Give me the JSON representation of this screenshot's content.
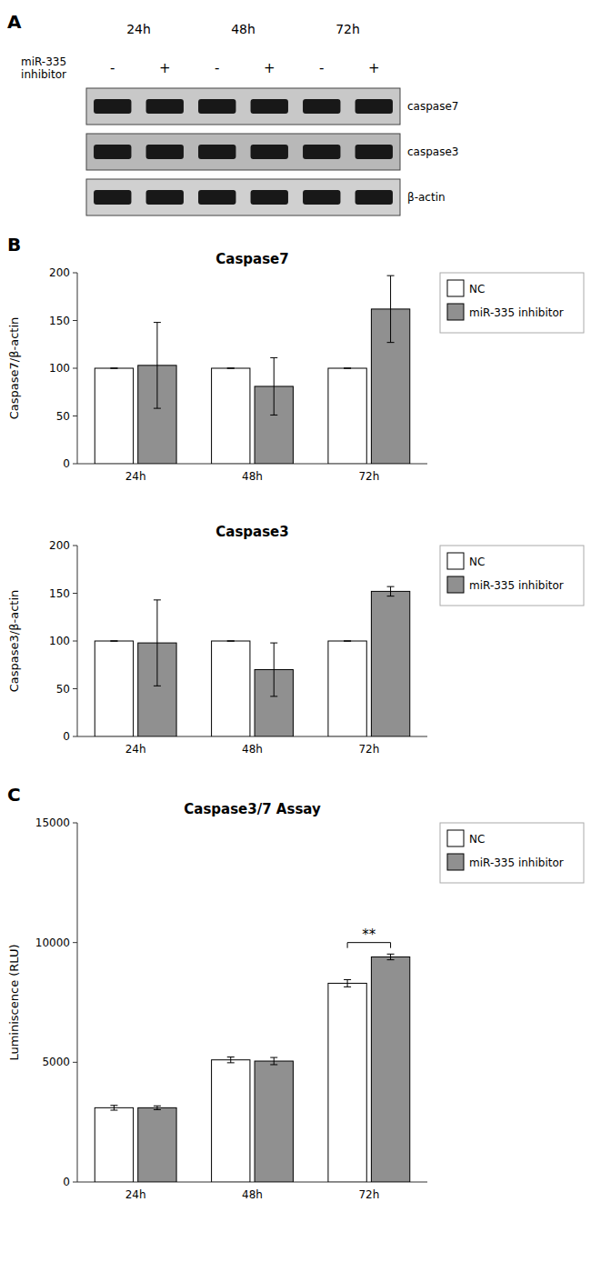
{
  "chart_data": [
    {
      "type": "blot",
      "annotations": [
        {
          "text": "A"
        }
      ],
      "ylabel": "miR-335\ninhibitor",
      "categories": [
        "24h",
        "48h",
        "72h"
      ],
      "lane_labels": [
        "-",
        "+",
        "-",
        "+",
        "-",
        "+"
      ],
      "row_labels": [
        "caspase7",
        "caspase3",
        "β-actin"
      ]
    },
    {
      "type": "bar",
      "title": "Caspase7",
      "ylabel": "Caspase7/β-actin",
      "annotations": [
        {
          "text": "B"
        }
      ],
      "categories": [
        "24h",
        "48h",
        "72h"
      ],
      "series": [
        {
          "name": "NC",
          "color": "#ffffff",
          "values": [
            100,
            100,
            100
          ],
          "errors": [
            0,
            0,
            0
          ]
        },
        {
          "name": "miR-335 inhibitor",
          "color": "#909090",
          "values": [
            103,
            81,
            162
          ],
          "errors": [
            45,
            30,
            35
          ]
        }
      ],
      "ylim": [
        0,
        200
      ],
      "yticks": [
        0,
        50,
        100,
        150,
        200
      ],
      "grid": false,
      "legend": "right"
    },
    {
      "type": "bar",
      "title": "Caspase3",
      "ylabel": "Caspase3/β-actin",
      "categories": [
        "24h",
        "48h",
        "72h"
      ],
      "series": [
        {
          "name": "NC",
          "color": "#ffffff",
          "values": [
            100,
            100,
            100
          ],
          "errors": [
            0,
            0,
            0
          ]
        },
        {
          "name": "miR-335 inhibitor",
          "color": "#909090",
          "values": [
            98,
            70,
            152
          ],
          "errors": [
            45,
            28,
            5
          ]
        }
      ],
      "ylim": [
        0,
        200
      ],
      "yticks": [
        0,
        50,
        100,
        150,
        200
      ],
      "grid": false,
      "legend": "right"
    },
    {
      "type": "bar",
      "title": "Caspase3/7 Assay",
      "ylabel": "Luminiscence (RLU)",
      "annotations": [
        {
          "text": "C"
        },
        {
          "text": "**",
          "x": "72h",
          "y": 10000
        }
      ],
      "categories": [
        "24h",
        "48h",
        "72h"
      ],
      "series": [
        {
          "name": "NC",
          "color": "#ffffff",
          "values": [
            3100,
            5100,
            8300
          ],
          "errors": [
            100,
            120,
            150
          ]
        },
        {
          "name": "miR-335 inhibitor",
          "color": "#909090",
          "values": [
            3100,
            5050,
            9400
          ],
          "errors": [
            80,
            150,
            120
          ]
        }
      ],
      "ylim": [
        0,
        15000
      ],
      "yticks": [
        0,
        5000,
        10000,
        15000
      ],
      "grid": false,
      "legend": "right"
    }
  ]
}
